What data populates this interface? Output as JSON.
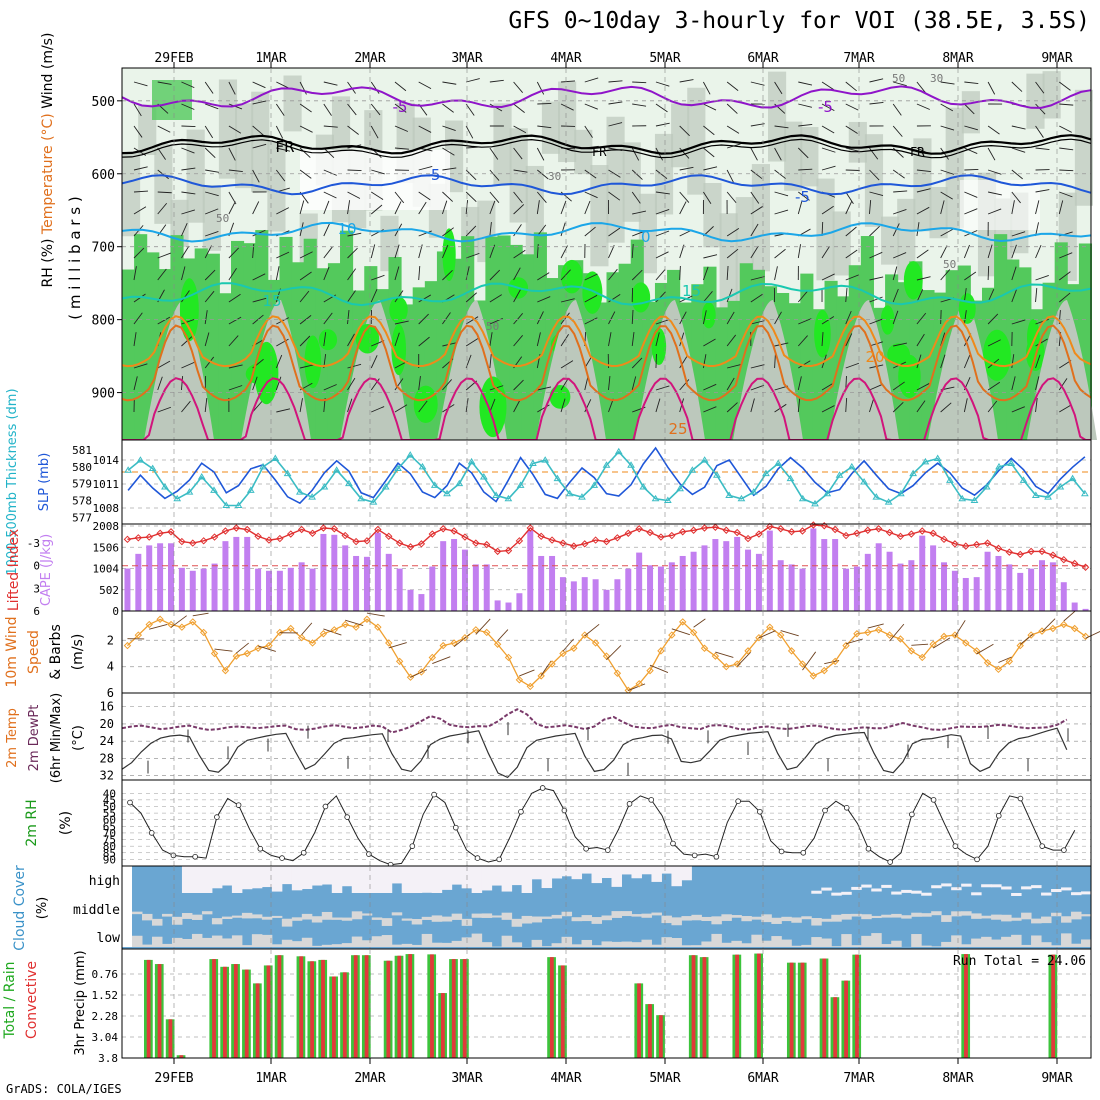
{
  "title": "GFS 0~10day 3-hourly for VOI (38.5E, 3.5S)",
  "credit": "GrADS: COLA/IGES",
  "dates": [
    "29FEB",
    "1MAR",
    "2MAR",
    "3MAR",
    "4MAR",
    "5MAR",
    "6MAR",
    "7MAR",
    "8MAR",
    "9MAR"
  ],
  "colors": {
    "purple": "#8f14c9",
    "blue": "#1f57d8",
    "lightblue": "#1ba6e8",
    "teal": "#19c8b0",
    "orange": "#ef8a1a",
    "darkorange": "#e0701d",
    "magenta": "#d1147c",
    "rhGreen": "#53c95c",
    "rhBright": "#22e822",
    "rhLight": "#eaf4ea",
    "rhGray": "#bcc8bc",
    "cloudBlue": "#6aa6d2",
    "cloudGray": "#d8d8d8",
    "cloudWhite": "#f4f1f7"
  },
  "chart_data": [
    {
      "panel": "upper_air",
      "type": "heatmap",
      "ylabel_parts": [
        "RH (%)",
        "Temperature (°C)",
        "Wind (m/s)"
      ],
      "ylabel2": "( m i l l i b a r s )",
      "y_ticks": [
        500,
        600,
        700,
        800,
        900
      ],
      "ylim": [
        965,
        455
      ],
      "contour_labels": [
        {
          "text": "-5",
          "level": 500
        },
        {
          "text": "FR",
          "level": 560
        },
        {
          "text": "-5",
          "level": 610
        },
        {
          "text": "10",
          "level": 680
        },
        {
          "text": "15",
          "level": 760
        },
        {
          "text": "20",
          "level": 840
        },
        {
          "text": "25",
          "level": 930
        }
      ],
      "rh_labels": [
        "30",
        "50"
      ]
    },
    {
      "panel": "slp_thickness",
      "type": "line",
      "ylabel_left": "1000-500mb Thickness (dm)",
      "ylabel_right": "SLP (mb)",
      "y_ticks_left": [
        577,
        578,
        579,
        580,
        581
      ],
      "y_ticks_right": [
        1008,
        1011,
        1014
      ],
      "series": [
        {
          "name": "SLP (mb)",
          "values": [
            1010.2,
            1012.1,
            1010.5,
            1009.2,
            1010.1,
            1011.5,
            1013.6,
            1012.5,
            1009.9,
            1010.8,
            1012.9,
            1013.4,
            1011.5,
            1009.4,
            1008.6,
            1010.2,
            1012.4,
            1013.9,
            1012.6,
            1009.9,
            1009.3,
            1011.4,
            1013.6,
            1012.3,
            1010.0,
            1009.3,
            1010.8,
            1013.6,
            1012.4,
            1010.0,
            1008.8,
            1011.5,
            1014.3,
            1012.2,
            1009.7,
            1009.2,
            1011.2,
            1013.0,
            1011.8,
            1009.8,
            1009.5,
            1010.9,
            1013.5,
            1015.5,
            1013.1,
            1011.0,
            1009.7,
            1010.6,
            1013.3,
            1014.0,
            1011.8,
            1009.6,
            1010.7,
            1012.9,
            1014.3,
            1013.0,
            1011.2,
            1009.9,
            1010.3,
            1012.3,
            1013.9,
            1012.1,
            1010.4,
            1009.8,
            1010.8,
            1012.4,
            1013.6,
            1012.4,
            1010.5,
            1009.6,
            1010.9,
            1012.7,
            1014.2,
            1012.8,
            1010.7,
            1009.8,
            1011.6,
            1013.1,
            1014.4
          ]
        },
        {
          "name": "Thickness (dm)",
          "values": [
            579.8,
            580.4,
            579.9,
            578.8,
            578.1,
            578.5,
            579.4,
            578.6,
            577.7,
            577.7,
            578.6,
            580.0,
            580.5,
            579.6,
            578.5,
            578.2,
            578.8,
            579.8,
            579.0,
            578.1,
            577.9,
            578.8,
            579.9,
            580.7,
            580.0,
            578.9,
            578.4,
            579.0,
            580.3,
            579.4,
            578.3,
            578.1,
            578.9,
            580.2,
            580.4,
            579.3,
            578.4,
            578.2,
            578.9,
            580.1,
            580.9,
            580.1,
            578.8,
            578.1,
            578.0,
            578.7,
            579.8,
            580.4,
            579.5,
            578.3,
            578.1,
            578.5,
            579.6,
            580.2,
            579.3,
            578.1,
            577.8,
            578.4,
            579.5,
            580.0,
            579.1,
            578.2,
            577.9,
            578.4,
            579.6,
            580.3,
            580.5,
            579.2,
            578.1,
            578.0,
            578.8,
            580.0,
            580.2,
            579.2,
            578.3,
            578.2,
            578.8,
            579.3,
            578.4
          ]
        }
      ]
    },
    {
      "panel": "cape_li",
      "type": "bar",
      "ylabel_left": "Lifted Index",
      "ylabel_right": "CAPE (J/kg)",
      "y_ticks_left": [
        "-3",
        "0",
        "3",
        "6"
      ],
      "y_ticks_right": [
        502,
        1004,
        1506,
        2008
      ],
      "series": [
        {
          "name": "CAPE (J/kg)",
          "values": [
            1004,
            1350,
            1550,
            1600,
            1600,
            1020,
            950,
            1000,
            1120,
            1650,
            1750,
            1750,
            1000,
            950,
            950,
            1020,
            1150,
            1000,
            1820,
            1800,
            1550,
            1300,
            1280,
            1850,
            1350,
            1000,
            500,
            400,
            1050,
            1650,
            1700,
            1450,
            1100,
            1100,
            250,
            200,
            420,
            1900,
            1300,
            1300,
            800,
            700,
            800,
            750,
            500,
            750,
            1000,
            1380,
            1080,
            1050,
            1150,
            1300,
            1400,
            1550,
            1700,
            1650,
            1750,
            1450,
            1350,
            1900,
            1200,
            1100,
            1000,
            1950,
            1700,
            1700,
            1000,
            1050,
            1350,
            1600,
            1400,
            1120,
            1200,
            1780,
            1550,
            1150,
            950,
            780,
            800,
            1400,
            1300,
            1100,
            900,
            1000,
            1200,
            1150,
            680,
            200,
            50
          ]
        },
        {
          "name": "Lifted Index",
          "values": [
            -3.5,
            -3.7,
            -3.8,
            -4.3,
            -4.5,
            -3.2,
            -3.0,
            -3.3,
            -3.8,
            -4.6,
            -5.0,
            -4.8,
            -3.9,
            -3.4,
            -3.6,
            -4.2,
            -4.8,
            -4.3,
            -5.0,
            -4.9,
            -4.0,
            -3.2,
            -3.3,
            -4.8,
            -3.9,
            -3.0,
            -2.5,
            -2.9,
            -4.2,
            -4.9,
            -4.6,
            -3.8,
            -3.0,
            -2.8,
            -1.9,
            -2.0,
            -3.3,
            -5.0,
            -3.9,
            -3.4,
            -3.0,
            -2.6,
            -2.9,
            -3.4,
            -3.2,
            -3.7,
            -4.3,
            -4.9,
            -4.4,
            -3.8,
            -4.0,
            -4.5,
            -4.7,
            -5.0,
            -5.1,
            -4.7,
            -4.4,
            -3.6,
            -4.2,
            -5.2,
            -4.9,
            -4.5,
            -4.6,
            -5.4,
            -5.3,
            -4.8,
            -4.0,
            -4.3,
            -4.7,
            -4.9,
            -4.4,
            -3.9,
            -4.2,
            -4.6,
            -4.3,
            -3.5,
            -2.9,
            -2.6,
            -2.8,
            -3.0,
            -2.3,
            -1.8,
            -1.5,
            -1.9,
            -1.9,
            -1.4,
            -0.8,
            -0.3,
            0.2
          ]
        }
      ]
    },
    {
      "panel": "wind10m",
      "type": "line",
      "ylabel": "10m Wind Speed & Barbs (m/s)",
      "y_ticks": [
        2,
        4,
        6
      ],
      "ylim": [
        0,
        6
      ],
      "series": [
        {
          "name": "10m Wind Speed",
          "values": [
            2.4,
            1.6,
            0.8,
            0.4,
            0.8,
            1.0,
            0.6,
            1.4,
            3.0,
            4.3,
            3.2,
            3.0,
            2.6,
            2.4,
            1.4,
            1.1,
            1.8,
            2.2,
            1.5,
            1.2,
            0.8,
            1.0,
            0.4,
            1.0,
            2.2,
            3.6,
            4.8,
            4.4,
            3.3,
            2.4,
            2.2,
            1.8,
            1.2,
            1.4,
            2.3,
            3.3,
            5.0,
            5.5,
            4.7,
            3.8,
            3.0,
            2.6,
            1.6,
            2.2,
            3.2,
            4.5,
            5.8,
            5.3,
            4.3,
            2.8,
            1.6,
            0.6,
            1.4,
            2.6,
            3.2,
            4.0,
            3.8,
            2.8,
            1.8,
            1.0,
            1.6,
            2.8,
            3.8,
            4.7,
            4.3,
            3.6,
            2.4,
            1.5,
            1.4,
            1.2,
            1.6,
            1.9,
            2.8,
            3.3,
            2.3,
            1.7,
            1.6,
            2.2,
            2.8,
            3.7,
            4.2,
            3.6,
            2.4,
            1.6,
            1.3,
            1.1,
            0.8,
            1.1,
            1.7
          ]
        }
      ]
    },
    {
      "panel": "temp2m",
      "type": "area",
      "ylabel": "2m Temp 2m DewPt (6hr Min/Max) (°C)",
      "y_ticks": [
        16,
        20,
        24,
        28,
        32
      ],
      "ylim": [
        14,
        33
      ],
      "series": [
        {
          "name": "2m Temp",
          "values": [
            30.5,
            29.0,
            26.5,
            24.5,
            23.3,
            22.8,
            22.6,
            23.0,
            27.2,
            30.8,
            31.2,
            29.2,
            25.4,
            23.8,
            23.3,
            22.8,
            22.4,
            22.2,
            26.5,
            30.5,
            29.4,
            27.0,
            24.5,
            23.4,
            23.2,
            22.8,
            22.5,
            22.3,
            26.9,
            30.5,
            31.0,
            28.6,
            24.8,
            23.5,
            22.8,
            22.4,
            22.0,
            21.6,
            26.8,
            31.4,
            32.4,
            30.0,
            25.5,
            23.8,
            23.3,
            22.8,
            22.5,
            22.2,
            27.4,
            31.0,
            30.6,
            28.4,
            24.8,
            23.6,
            23.2,
            22.7,
            22.6,
            23.5,
            28.7,
            29.0,
            28.5,
            26.2,
            23.8,
            23.0,
            22.6,
            22.2,
            22.0,
            21.8,
            26.8,
            30.6,
            30.0,
            27.5,
            24.6,
            23.4,
            22.7,
            22.4,
            22.1,
            22.0,
            26.8,
            30.8,
            31.3,
            28.8,
            24.6,
            23.6,
            23.4,
            23.0,
            22.5,
            22.8,
            29.2,
            31.0,
            30.0,
            26.6,
            24.4,
            23.4,
            23.0,
            22.3,
            21.6,
            21.0,
            26.0
          ]
        },
        {
          "name": "2m DewPt",
          "values": [
            21.0,
            20.6,
            20.4,
            20.8,
            21.2,
            21.0,
            20.6,
            20.4,
            21.0,
            21.4,
            21.2,
            20.8,
            20.6,
            20.8,
            21.0,
            20.8,
            20.5,
            20.4,
            21.2,
            21.4,
            21.1,
            20.6,
            20.3,
            20.6,
            21.0,
            20.8,
            20.4,
            20.6,
            22.0,
            21.4,
            20.6,
            19.4,
            18.2,
            18.8,
            20.2,
            20.6,
            20.8,
            20.5,
            20.6,
            19.4,
            17.8,
            16.6,
            17.8,
            20.0,
            20.8,
            20.6,
            20.3,
            20.7,
            21.2,
            20.6,
            19.0,
            18.4,
            19.6,
            20.6,
            20.9,
            21.0,
            20.5,
            20.2,
            20.8,
            21.0,
            21.2,
            20.4,
            20.3,
            20.6,
            21.2,
            21.3,
            20.8,
            20.6,
            21.0,
            21.2,
            20.9,
            20.5,
            20.4,
            20.8,
            21.2,
            21.4,
            21.0,
            20.8,
            21.0,
            21.0,
            20.4,
            19.8,
            20.4,
            20.8,
            21.3,
            21.4,
            21.0,
            20.6,
            20.7,
            20.7,
            20.5,
            20.2,
            20.4,
            20.8,
            21.0,
            20.9,
            20.8,
            20.2,
            19.0
          ]
        }
      ]
    },
    {
      "panel": "rh2m",
      "type": "area",
      "ylabel": "2m RH (%)",
      "y_ticks": [
        40,
        45,
        50,
        55,
        60,
        65,
        70,
        75,
        80,
        85,
        90
      ],
      "ylim": [
        33,
        95
      ],
      "series": [
        {
          "name": "2m RH",
          "values": [
            47,
            55,
            70,
            83,
            87,
            88,
            88,
            89,
            58,
            44,
            49,
            67,
            82,
            87,
            89,
            91,
            85,
            70,
            50,
            42,
            58,
            74,
            86,
            91,
            94,
            93,
            80,
            56,
            41,
            47,
            66,
            83,
            89,
            92,
            90,
            73,
            54,
            40,
            36,
            38,
            53,
            73,
            82,
            81,
            83,
            67,
            48,
            42,
            45,
            57,
            78,
            86,
            87,
            86,
            88,
            62,
            46,
            46,
            54,
            76,
            84,
            85,
            85,
            74,
            53,
            46,
            51,
            63,
            82,
            88,
            92,
            85,
            56,
            40,
            45,
            63,
            80,
            86,
            90,
            80,
            57,
            42,
            44,
            62,
            80,
            83,
            83,
            68
          ]
        }
      ]
    },
    {
      "panel": "cloud",
      "type": "bar",
      "ylabel": "Cloud Cover (%)",
      "layer_labels": [
        "high",
        "middle",
        "low"
      ]
    },
    {
      "panel": "precip",
      "type": "bar",
      "ylabel_left_a": "Total / Rain",
      "ylabel_left_b": "Convective",
      "ylabel": "3hr Precip (mm)",
      "y_ticks": [
        "0.76",
        "1.52",
        "2.28",
        "3.04",
        "3.8"
      ],
      "ylim": [
        0,
        3.8
      ],
      "run_total_label": "Run Total = 24.06",
      "series": [
        {
          "name": "3hr Precip",
          "values": [
            0.25,
            0.4,
            2.4,
            3.7,
            0,
            0,
            0.22,
            0.5,
            0.4,
            0.6,
            1.1,
            0.45,
            0.08,
            0,
            0.12,
            0.3,
            0.25,
            0.85,
            0.7,
            0.08,
            0.08,
            0,
            0.28,
            0.1,
            0.04,
            0,
            0.05,
            1.45,
            0.22,
            0.22,
            0,
            0,
            0,
            0,
            0,
            0,
            0,
            0.15,
            0.45,
            0,
            0,
            0,
            0,
            0,
            0,
            1.1,
            1.85,
            2.25,
            0,
            0,
            0.08,
            0.15,
            0,
            0,
            0.06,
            0,
            0.02,
            0,
            0,
            0.35,
            0.35,
            0,
            0.2,
            1.6,
            1.0,
            0.06,
            0,
            0,
            0,
            0,
            0,
            0,
            0,
            0,
            0,
            0.04,
            0,
            0,
            0,
            0,
            0,
            0,
            0,
            0.06,
            0,
            0,
            0,
            0
          ]
        }
      ]
    }
  ]
}
